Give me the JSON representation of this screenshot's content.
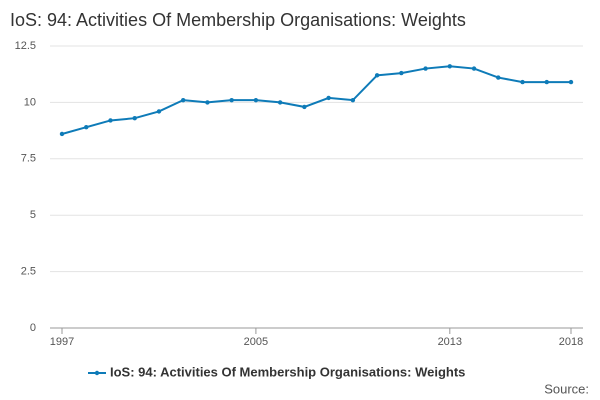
{
  "chart_data": {
    "type": "line",
    "title": "IoS: 94: Activities Of Membership Organisations: Weights",
    "x": [
      1997,
      1998,
      1999,
      2000,
      2001,
      2002,
      2003,
      2004,
      2005,
      2006,
      2007,
      2008,
      2009,
      2010,
      2011,
      2012,
      2013,
      2014,
      2015,
      2016,
      2017,
      2018
    ],
    "series": [
      {
        "name": "IoS: 94: Activities Of Membership Organisations: Weights",
        "color": "#0e7bb8",
        "values": [
          8.6,
          8.9,
          9.2,
          9.3,
          9.6,
          10.1,
          10.0,
          10.1,
          10.1,
          10.0,
          9.8,
          10.2,
          10.1,
          11.2,
          11.3,
          11.5,
          11.6,
          11.5,
          11.1,
          10.9,
          10.9,
          10.9
        ]
      }
    ],
    "xlim": [
      1997,
      2018
    ],
    "xticks": [
      1997,
      2005,
      2013,
      2018
    ],
    "ylim": [
      0,
      12.5
    ],
    "yticks": [
      0,
      2.5,
      5,
      7.5,
      10,
      12.5
    ],
    "grid": true,
    "legend": "bottom",
    "source": "Source:"
  }
}
